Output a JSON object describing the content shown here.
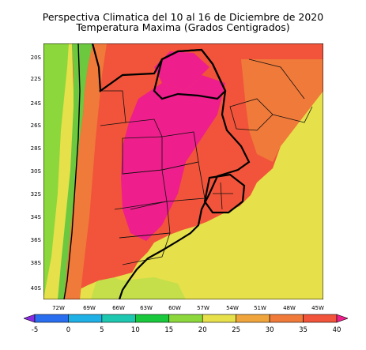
{
  "title": {
    "line1": "Perspectiva Climatica del 10 al 16 de Diciembre de 2020",
    "line2": "Temperatura Maxima (Grados Centigrados)"
  },
  "map": {
    "lat_labels": [
      "20S",
      "22S",
      "24S",
      "26S",
      "28S",
      "30S",
      "32S",
      "34S",
      "36S",
      "38S",
      "40S"
    ],
    "lon_labels": [
      "72W",
      "69W",
      "66W",
      "63W",
      "60W",
      "57W",
      "54W",
      "51W",
      "48W",
      "45W"
    ],
    "ocean_color": "#e6e04a",
    "land_color": "#f1543a",
    "hot_color": "#ee1e8c",
    "andes_color": "#6cc83e"
  },
  "colorbar": {
    "ticks": [
      "-5",
      "0",
      "5",
      "10",
      "15",
      "20",
      "25",
      "30",
      "35",
      "40"
    ],
    "colors": [
      "#8a2be2",
      "#2a6ef0",
      "#1fb0e6",
      "#1ec8b0",
      "#19c83c",
      "#8cd83c",
      "#e6e04a",
      "#f0a53c",
      "#f07a3a",
      "#f1543a",
      "#ee1e8c"
    ]
  }
}
